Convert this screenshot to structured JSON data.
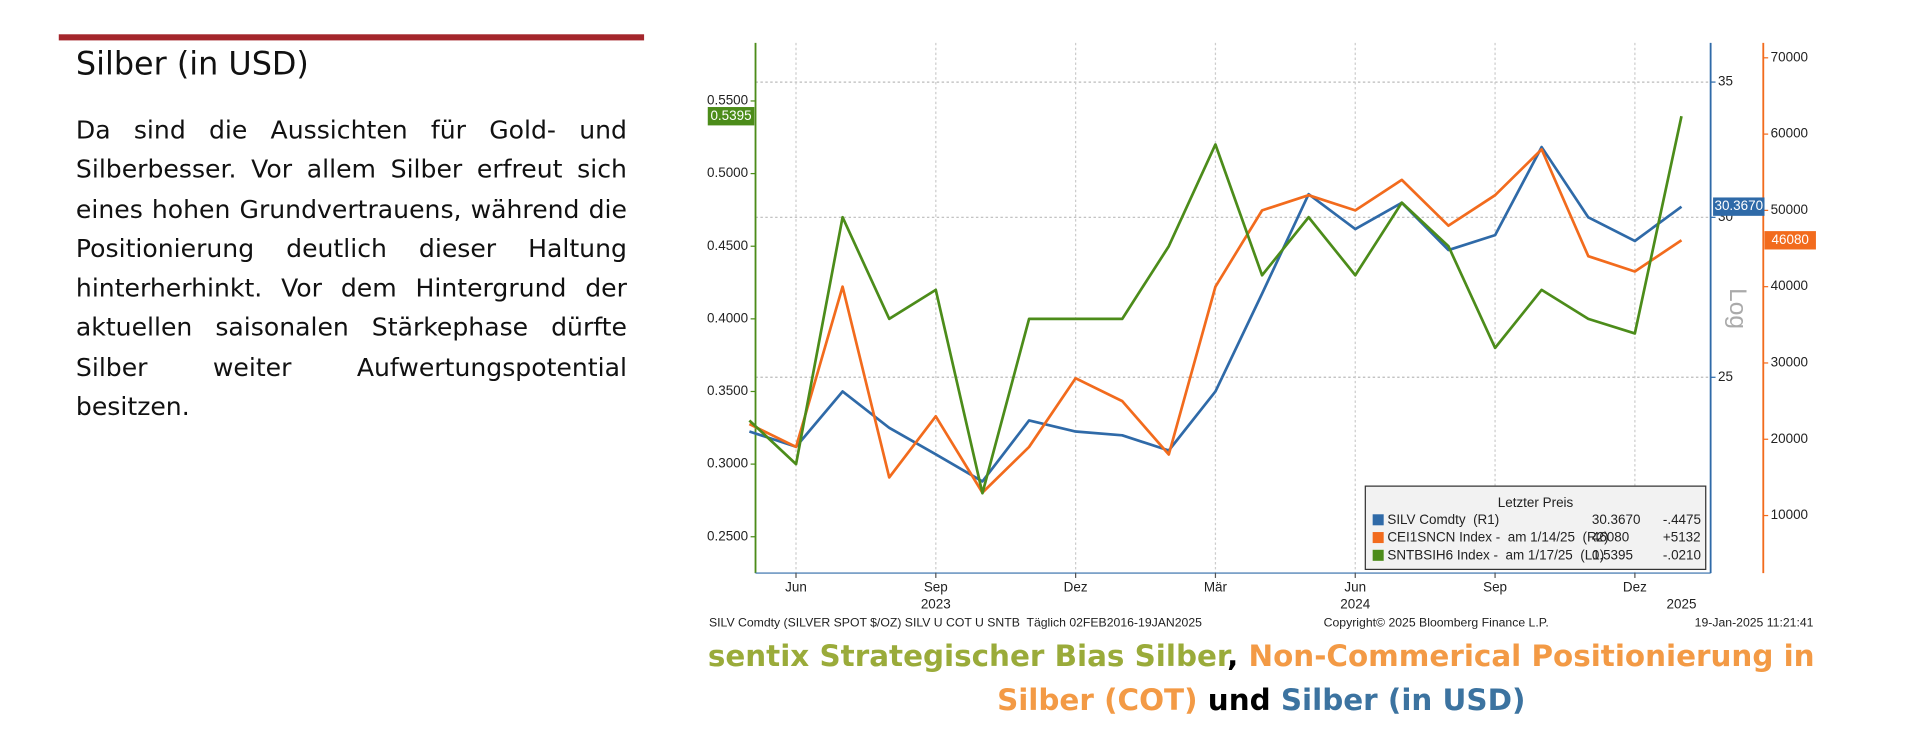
{
  "header": {
    "title": "Silber (in USD)"
  },
  "body": {
    "paragraph": "Da sind die Aussichten für Gold- und Silberbesser. Vor allem Silber erfreut sich eines hohen Grundvertrauens, während die Positionierung deutlich dieser Haltung hinterherhinkt. Vor dem Hintergrund der aktuellen saisonalen Stärkephase dürfte Silber weiter Aufwertungspotential besitzen."
  },
  "chart_data": {
    "type": "line",
    "x": [
      "2023-05",
      "2023-06",
      "2023-07",
      "2023-08",
      "2023-09",
      "2023-10",
      "2023-11",
      "2023-12",
      "2024-01",
      "2024-02",
      "2024-03",
      "2024-04",
      "2024-05",
      "2024-06",
      "2024-07",
      "2024-08",
      "2024-09",
      "2024-10",
      "2024-11",
      "2024-12",
      "2025-01"
    ],
    "series": [
      {
        "name": "SILV Comdty  (R1)",
        "color": "#2f6aa8",
        "axis": "y2",
        "values": [
          23.5,
          23.1,
          24.6,
          23.6,
          22.9,
          22.2,
          23.8,
          23.5,
          23.4,
          23.0,
          24.6,
          27.5,
          30.8,
          29.6,
          30.5,
          28.9,
          29.4,
          32.5,
          30.0,
          29.2,
          30.367
        ]
      },
      {
        "name": "CEI1SNCN Index -  am 1/14/25  (R2)",
        "color": "#f26b1d",
        "axis": "y3",
        "values": [
          22000,
          19000,
          40000,
          15000,
          23000,
          13000,
          19000,
          28000,
          25000,
          18000,
          40000,
          50000,
          52000,
          50000,
          54000,
          48000,
          52000,
          58000,
          44000,
          42000,
          46080
        ]
      },
      {
        "name": "SNTBSIH6 Index -  am 1/17/25  (L1)",
        "color": "#4c8c1a",
        "axis": "y",
        "values": [
          0.33,
          0.3,
          0.47,
          0.4,
          0.42,
          0.28,
          0.4,
          0.4,
          0.4,
          0.45,
          0.52,
          0.43,
          0.47,
          0.43,
          0.48,
          0.45,
          0.38,
          0.42,
          0.4,
          0.39,
          0.5395
        ]
      }
    ],
    "ylim": [
      0.225,
      0.59
    ],
    "yticks": [
      {
        "value": 0.25,
        "label": "0.2500"
      },
      {
        "value": 0.3,
        "label": "0.3000"
      },
      {
        "value": 0.35,
        "label": "0.3500"
      },
      {
        "value": 0.4,
        "label": "0.4000"
      },
      {
        "value": 0.45,
        "label": "0.4500"
      },
      {
        "value": 0.5,
        "label": "0.5000"
      },
      {
        "value": 0.55,
        "label": "0.5500"
      }
    ],
    "y2lim": [
      20,
      36.6
    ],
    "y2ticks": [
      25,
      30,
      35
    ],
    "y2_log": true,
    "y2_label": "Log",
    "y3lim": [
      2460,
      71960
    ],
    "y3ticks": [
      10000,
      20000,
      30000,
      40000,
      50000,
      60000,
      70000
    ],
    "xticks": [
      {
        "value": "2023-06",
        "label": "Jun"
      },
      {
        "value": "2023-09",
        "label": "Sep"
      },
      {
        "value": "2023-12",
        "label": "Dez"
      },
      {
        "value": "2024-03",
        "label": "Mär"
      },
      {
        "value": "2024-06",
        "label": "Jun"
      },
      {
        "value": "2024-09",
        "label": "Sep"
      },
      {
        "value": "2024-12",
        "label": "Dez"
      }
    ],
    "year_labels": [
      {
        "value": "2023-09",
        "label": "2023"
      },
      {
        "value": "2024-06",
        "label": "2024"
      },
      {
        "value": "2025-01",
        "label": "2025"
      }
    ],
    "grid": true,
    "legend_title": "Letzter Preis",
    "legend_last": [
      "30.3670",
      "46080",
      "0.5395"
    ],
    "legend_change": [
      "-.4475",
      "+5132",
      "-.0210"
    ],
    "source": "SILV Comdty (SILVER SPOT $/OZ) SILV U COT U SNTB  Täglich 02FEB2016-19JAN2025",
    "copyright": "Copyright© 2025 Bloomberg Finance L.P.",
    "timestamp": "19-Jan-2025 11:21:41"
  },
  "caption": {
    "parts": [
      {
        "text": "sentix Strategischer Bias Silber",
        "color": "#9aab3a"
      },
      {
        "text": ", ",
        "color": "#000000"
      },
      {
        "text": "Non-Commerical Positionierung in Silber (COT)",
        "color": "#f39a45"
      },
      {
        "text": " und ",
        "color": "#000000"
      },
      {
        "text": "Silber (in USD)",
        "color": "#3c73a0"
      }
    ]
  }
}
